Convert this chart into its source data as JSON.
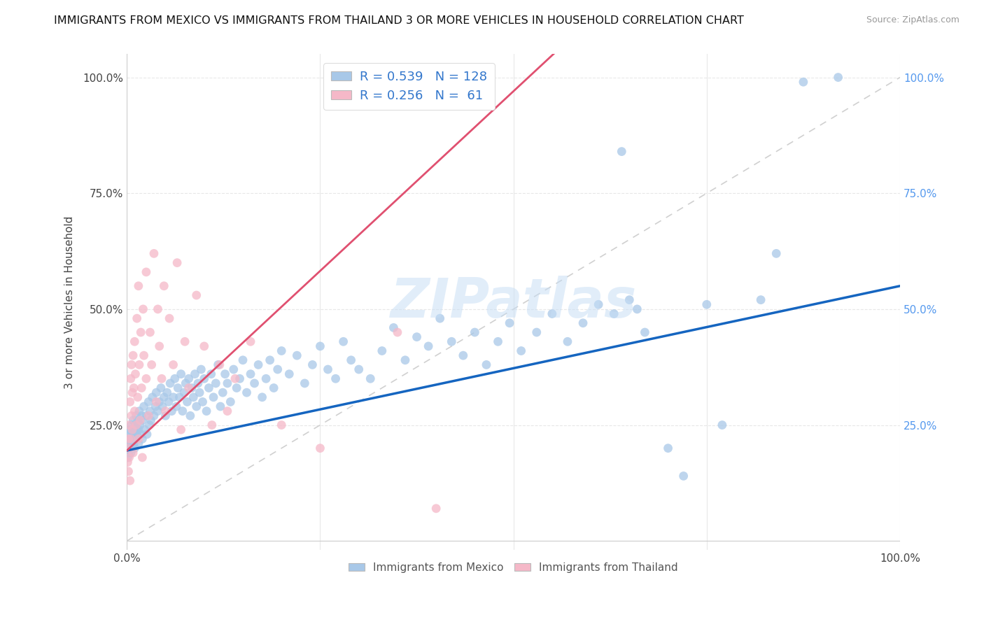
{
  "title": "IMMIGRANTS FROM MEXICO VS IMMIGRANTS FROM THAILAND 3 OR MORE VEHICLES IN HOUSEHOLD CORRELATION CHART",
  "source": "Source: ZipAtlas.com",
  "ylabel": "3 or more Vehicles in Household",
  "xlim": [
    0,
    1.0
  ],
  "ylim": [
    -0.02,
    1.05
  ],
  "ytick_labels": [
    "25.0%",
    "50.0%",
    "75.0%",
    "100.0%"
  ],
  "ytick_positions": [
    0.25,
    0.5,
    0.75,
    1.0
  ],
  "right_ytick_labels": [
    "25.0%",
    "50.0%",
    "75.0%",
    "100.0%"
  ],
  "watermark_text": "ZIPatlas",
  "mexico_color": "#a8c8e8",
  "thailand_color": "#f5b8c8",
  "mexico_line_color": "#1565c0",
  "thailand_line_color": "#e05070",
  "diagonal_color": "#d0d0d0",
  "mexico_slope": 0.355,
  "mexico_intercept": 0.195,
  "thailand_slope": 1.55,
  "thailand_intercept": 0.195,
  "mexico_points": [
    [
      0.001,
      0.2
    ],
    [
      0.001,
      0.18
    ],
    [
      0.002,
      0.22
    ],
    [
      0.002,
      0.19
    ],
    [
      0.003,
      0.21
    ],
    [
      0.003,
      0.23
    ],
    [
      0.004,
      0.2
    ],
    [
      0.004,
      0.24
    ],
    [
      0.005,
      0.22
    ],
    [
      0.005,
      0.19
    ],
    [
      0.006,
      0.25
    ],
    [
      0.006,
      0.21
    ],
    [
      0.007,
      0.23
    ],
    [
      0.007,
      0.2
    ],
    [
      0.008,
      0.26
    ],
    [
      0.008,
      0.22
    ],
    [
      0.009,
      0.24
    ],
    [
      0.009,
      0.21
    ],
    [
      0.01,
      0.23
    ],
    [
      0.01,
      0.2
    ],
    [
      0.011,
      0.25
    ],
    [
      0.011,
      0.22
    ],
    [
      0.012,
      0.27
    ],
    [
      0.012,
      0.24
    ],
    [
      0.013,
      0.23
    ],
    [
      0.014,
      0.26
    ],
    [
      0.015,
      0.24
    ],
    [
      0.015,
      0.21
    ],
    [
      0.016,
      0.28
    ],
    [
      0.017,
      0.25
    ],
    [
      0.018,
      0.23
    ],
    [
      0.019,
      0.27
    ],
    [
      0.02,
      0.26
    ],
    [
      0.02,
      0.22
    ],
    [
      0.022,
      0.29
    ],
    [
      0.023,
      0.24
    ],
    [
      0.025,
      0.27
    ],
    [
      0.026,
      0.23
    ],
    [
      0.028,
      0.3
    ],
    [
      0.029,
      0.25
    ],
    [
      0.03,
      0.28
    ],
    [
      0.031,
      0.26
    ],
    [
      0.033,
      0.31
    ],
    [
      0.035,
      0.27
    ],
    [
      0.037,
      0.29
    ],
    [
      0.038,
      0.32
    ],
    [
      0.04,
      0.28
    ],
    [
      0.042,
      0.3
    ],
    [
      0.044,
      0.33
    ],
    [
      0.046,
      0.29
    ],
    [
      0.048,
      0.31
    ],
    [
      0.05,
      0.27
    ],
    [
      0.052,
      0.32
    ],
    [
      0.054,
      0.3
    ],
    [
      0.056,
      0.34
    ],
    [
      0.058,
      0.28
    ],
    [
      0.06,
      0.31
    ],
    [
      0.062,
      0.35
    ],
    [
      0.064,
      0.29
    ],
    [
      0.066,
      0.33
    ],
    [
      0.068,
      0.31
    ],
    [
      0.07,
      0.36
    ],
    [
      0.072,
      0.28
    ],
    [
      0.074,
      0.32
    ],
    [
      0.076,
      0.34
    ],
    [
      0.078,
      0.3
    ],
    [
      0.08,
      0.35
    ],
    [
      0.082,
      0.27
    ],
    [
      0.084,
      0.33
    ],
    [
      0.086,
      0.31
    ],
    [
      0.088,
      0.36
    ],
    [
      0.09,
      0.29
    ],
    [
      0.092,
      0.34
    ],
    [
      0.094,
      0.32
    ],
    [
      0.096,
      0.37
    ],
    [
      0.098,
      0.3
    ],
    [
      0.1,
      0.35
    ],
    [
      0.103,
      0.28
    ],
    [
      0.106,
      0.33
    ],
    [
      0.109,
      0.36
    ],
    [
      0.112,
      0.31
    ],
    [
      0.115,
      0.34
    ],
    [
      0.118,
      0.38
    ],
    [
      0.121,
      0.29
    ],
    [
      0.124,
      0.32
    ],
    [
      0.127,
      0.36
    ],
    [
      0.13,
      0.34
    ],
    [
      0.134,
      0.3
    ],
    [
      0.138,
      0.37
    ],
    [
      0.142,
      0.33
    ],
    [
      0.146,
      0.35
    ],
    [
      0.15,
      0.39
    ],
    [
      0.155,
      0.32
    ],
    [
      0.16,
      0.36
    ],
    [
      0.165,
      0.34
    ],
    [
      0.17,
      0.38
    ],
    [
      0.175,
      0.31
    ],
    [
      0.18,
      0.35
    ],
    [
      0.185,
      0.39
    ],
    [
      0.19,
      0.33
    ],
    [
      0.195,
      0.37
    ],
    [
      0.2,
      0.41
    ],
    [
      0.21,
      0.36
    ],
    [
      0.22,
      0.4
    ],
    [
      0.23,
      0.34
    ],
    [
      0.24,
      0.38
    ],
    [
      0.25,
      0.42
    ],
    [
      0.26,
      0.37
    ],
    [
      0.27,
      0.35
    ],
    [
      0.28,
      0.43
    ],
    [
      0.29,
      0.39
    ],
    [
      0.3,
      0.37
    ],
    [
      0.315,
      0.35
    ],
    [
      0.33,
      0.41
    ],
    [
      0.345,
      0.46
    ],
    [
      0.36,
      0.39
    ],
    [
      0.375,
      0.44
    ],
    [
      0.39,
      0.42
    ],
    [
      0.405,
      0.48
    ],
    [
      0.42,
      0.43
    ],
    [
      0.435,
      0.4
    ],
    [
      0.45,
      0.45
    ],
    [
      0.465,
      0.38
    ],
    [
      0.48,
      0.43
    ],
    [
      0.495,
      0.47
    ],
    [
      0.51,
      0.41
    ],
    [
      0.53,
      0.45
    ],
    [
      0.55,
      0.49
    ],
    [
      0.57,
      0.43
    ],
    [
      0.59,
      0.47
    ],
    [
      0.61,
      0.51
    ],
    [
      0.63,
      0.49
    ],
    [
      0.64,
      0.84
    ],
    [
      0.65,
      0.52
    ],
    [
      0.66,
      0.5
    ],
    [
      0.67,
      0.45
    ],
    [
      0.7,
      0.2
    ],
    [
      0.72,
      0.14
    ],
    [
      0.75,
      0.51
    ],
    [
      0.77,
      0.25
    ],
    [
      0.82,
      0.52
    ],
    [
      0.84,
      0.62
    ],
    [
      0.875,
      0.99
    ],
    [
      0.92,
      1.0
    ]
  ],
  "thailand_points": [
    [
      0.001,
      0.2
    ],
    [
      0.001,
      0.17
    ],
    [
      0.002,
      0.22
    ],
    [
      0.002,
      0.15
    ],
    [
      0.003,
      0.25
    ],
    [
      0.003,
      0.18
    ],
    [
      0.004,
      0.3
    ],
    [
      0.004,
      0.13
    ],
    [
      0.005,
      0.35
    ],
    [
      0.005,
      0.22
    ],
    [
      0.006,
      0.27
    ],
    [
      0.006,
      0.38
    ],
    [
      0.007,
      0.32
    ],
    [
      0.007,
      0.24
    ],
    [
      0.008,
      0.4
    ],
    [
      0.008,
      0.19
    ],
    [
      0.009,
      0.33
    ],
    [
      0.01,
      0.28
    ],
    [
      0.01,
      0.43
    ],
    [
      0.011,
      0.36
    ],
    [
      0.012,
      0.25
    ],
    [
      0.013,
      0.48
    ],
    [
      0.014,
      0.31
    ],
    [
      0.015,
      0.22
    ],
    [
      0.015,
      0.55
    ],
    [
      0.016,
      0.38
    ],
    [
      0.017,
      0.26
    ],
    [
      0.018,
      0.45
    ],
    [
      0.019,
      0.33
    ],
    [
      0.02,
      0.18
    ],
    [
      0.021,
      0.5
    ],
    [
      0.022,
      0.4
    ],
    [
      0.025,
      0.35
    ],
    [
      0.025,
      0.58
    ],
    [
      0.028,
      0.27
    ],
    [
      0.03,
      0.45
    ],
    [
      0.032,
      0.38
    ],
    [
      0.035,
      0.62
    ],
    [
      0.038,
      0.3
    ],
    [
      0.04,
      0.5
    ],
    [
      0.042,
      0.42
    ],
    [
      0.045,
      0.35
    ],
    [
      0.048,
      0.55
    ],
    [
      0.05,
      0.28
    ],
    [
      0.055,
      0.48
    ],
    [
      0.06,
      0.38
    ],
    [
      0.065,
      0.6
    ],
    [
      0.07,
      0.24
    ],
    [
      0.075,
      0.43
    ],
    [
      0.08,
      0.33
    ],
    [
      0.09,
      0.53
    ],
    [
      0.1,
      0.42
    ],
    [
      0.11,
      0.25
    ],
    [
      0.12,
      0.38
    ],
    [
      0.13,
      0.28
    ],
    [
      0.14,
      0.35
    ],
    [
      0.16,
      0.43
    ],
    [
      0.2,
      0.25
    ],
    [
      0.25,
      0.2
    ],
    [
      0.35,
      0.45
    ],
    [
      0.4,
      0.07
    ]
  ],
  "background_color": "#ffffff",
  "grid_color": "#e8e8e8"
}
